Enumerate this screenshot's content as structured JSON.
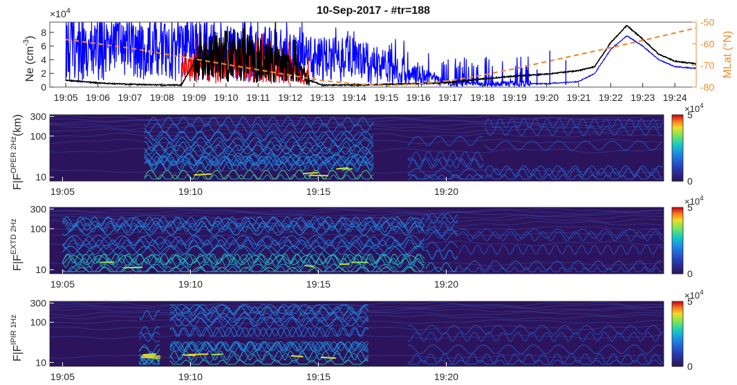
{
  "chart_data": [
    {
      "type": "line",
      "title": "10-Sep-2017 - #tr=188",
      "ylabel": "Ne (cm",
      "ylabel_sup": "-3",
      "ylabel_end": ")",
      "y_exponent_base": "×10",
      "y_exponent_power": "4",
      "ylim": [
        0,
        9.5
      ],
      "yticks": [
        0,
        2,
        4,
        6,
        8
      ],
      "y2label": "MLat (°N)",
      "y2lim": [
        -80,
        -50
      ],
      "y2ticks": [
        -80,
        -70,
        -60,
        -50
      ],
      "xlim": [
        "19:04:30",
        "19:24:40"
      ],
      "xticks": [
        "19:05",
        "19:06",
        "19:07",
        "19:08",
        "19:09",
        "19:10",
        "19:11",
        "19:12",
        "19:13",
        "19:14",
        "19:15",
        "19:16",
        "19:17",
        "19:18",
        "19:19",
        "19:20",
        "19:21",
        "19:22",
        "19:23",
        "19:24"
      ],
      "series": [
        {
          "color": "#0000ff",
          "style": "noisy",
          "noisy_until_min": 14.5,
          "x_min": [
            0,
            1,
            2,
            3,
            4,
            5,
            6,
            7,
            8,
            9,
            10,
            11,
            11.5,
            12,
            13,
            14,
            15,
            16,
            16.5,
            17,
            17.5,
            18,
            18.5,
            19,
            20,
            21,
            22,
            23,
            23.5
          ],
          "values": [
            6.0,
            6.0,
            5.8,
            5.5,
            5.5,
            5.0,
            4.8,
            4.5,
            4.2,
            3.8,
            3.0,
            2.0,
            1.0,
            0.5,
            0.4,
            0.5,
            0.5,
            0.8,
            2.0,
            5.5,
            7.5,
            6.0,
            4.0,
            3.0,
            2.6,
            2.3,
            2.2,
            2.1,
            2.1
          ]
        },
        {
          "color": "#ff0000",
          "style": "noisy",
          "noisy_from_min": 3.6,
          "noisy_until_min": 7.6,
          "x_min": [
            3.6,
            4,
            5,
            6,
            7,
            7.6
          ],
          "values": [
            2.0,
            3.0,
            3.5,
            3.2,
            2.5,
            1.5
          ]
        },
        {
          "color": "#000000",
          "style": "noisy",
          "noisy_from_min": 4.0,
          "noisy_until_min": 7.6,
          "x_min": [
            0,
            1,
            2,
            3,
            3.6,
            4,
            5,
            6,
            7,
            7.6,
            8,
            9,
            10,
            11,
            12,
            13,
            14,
            15,
            16,
            16.5,
            17,
            17.5,
            18,
            18.5,
            19,
            20,
            21,
            22,
            23,
            24.6
          ],
          "values": [
            1.0,
            0.6,
            0.4,
            0.3,
            0.3,
            3.5,
            4.5,
            4.0,
            3.0,
            1.0,
            0.3,
            0.3,
            0.4,
            0.5,
            0.7,
            1.2,
            1.6,
            1.9,
            2.4,
            3.0,
            6.5,
            9.0,
            7.0,
            4.8,
            3.8,
            3.2,
            3.0,
            2.8,
            2.8,
            2.8
          ]
        },
        {
          "color": "#f08a2a",
          "style": "dashed",
          "axis": "right",
          "x_min": [
            0,
            2,
            4,
            6,
            8,
            9,
            10,
            11,
            12,
            13,
            14,
            16,
            18,
            20,
            20.6
          ],
          "values": [
            -58,
            -62,
            -67,
            -72,
            -77,
            -78.5,
            -79.3,
            -78.5,
            -77,
            -74.5,
            -71.5,
            -65,
            -58.5,
            -51.5,
            -49.5
          ]
        }
      ]
    },
    {
      "type": "heatmap",
      "ylabel": "F|F",
      "ylabel_sup": "OPER 2Hz",
      "ylabel_end": "(km)",
      "yticks": [
        10,
        100,
        300
      ],
      "xticks": [
        "19:05",
        "19:10",
        "19:15",
        "19:20"
      ],
      "colorbar_ticks": [
        0,
        5
      ],
      "colorbar_exponent_base": "×10",
      "colorbar_exponent_power": "4",
      "bursts": [
        {
          "from_min": 3.2,
          "to_min": 12.2,
          "intensity": 1.0
        },
        {
          "from_min": 13.5,
          "to_min": 16.5,
          "intensity": 0.25
        },
        {
          "from_min": 16.5,
          "to_min": 23.5,
          "intensity": 0.2
        }
      ]
    },
    {
      "type": "heatmap",
      "ylabel": "F|F",
      "ylabel_sup": "EXTD 2Hz",
      "ylabel_end": "",
      "yticks": [
        10,
        100,
        300
      ],
      "xticks": [
        "19:05",
        "19:10",
        "19:15",
        "19:20"
      ],
      "colorbar_ticks": [
        0,
        5
      ],
      "colorbar_exponent_base": "×10",
      "colorbar_exponent_power": "4",
      "bursts": [
        {
          "from_min": 0.0,
          "to_min": 14.2,
          "intensity": 1.0
        },
        {
          "from_min": 14.2,
          "to_min": 15.5,
          "intensity": 0.55
        },
        {
          "from_min": 15.5,
          "to_min": 23.5,
          "intensity": 0.15
        }
      ]
    },
    {
      "type": "heatmap",
      "ylabel": "F|F",
      "ylabel_sup": "IPIR 1Hz",
      "ylabel_end": "",
      "yticks": [
        10,
        100,
        300
      ],
      "xticks": [
        "19:05",
        "19:10",
        "19:15",
        "19:20"
      ],
      "colorbar_ticks": [
        0,
        5
      ],
      "colorbar_exponent_base": "×10",
      "colorbar_exponent_power": "4",
      "bursts": [
        {
          "from_min": 3.0,
          "to_min": 3.8,
          "intensity": 0.7
        },
        {
          "from_min": 4.2,
          "to_min": 12.0,
          "intensity": 1.0
        },
        {
          "from_min": 13.5,
          "to_min": 23.5,
          "intensity": 0.12
        }
      ]
    }
  ]
}
